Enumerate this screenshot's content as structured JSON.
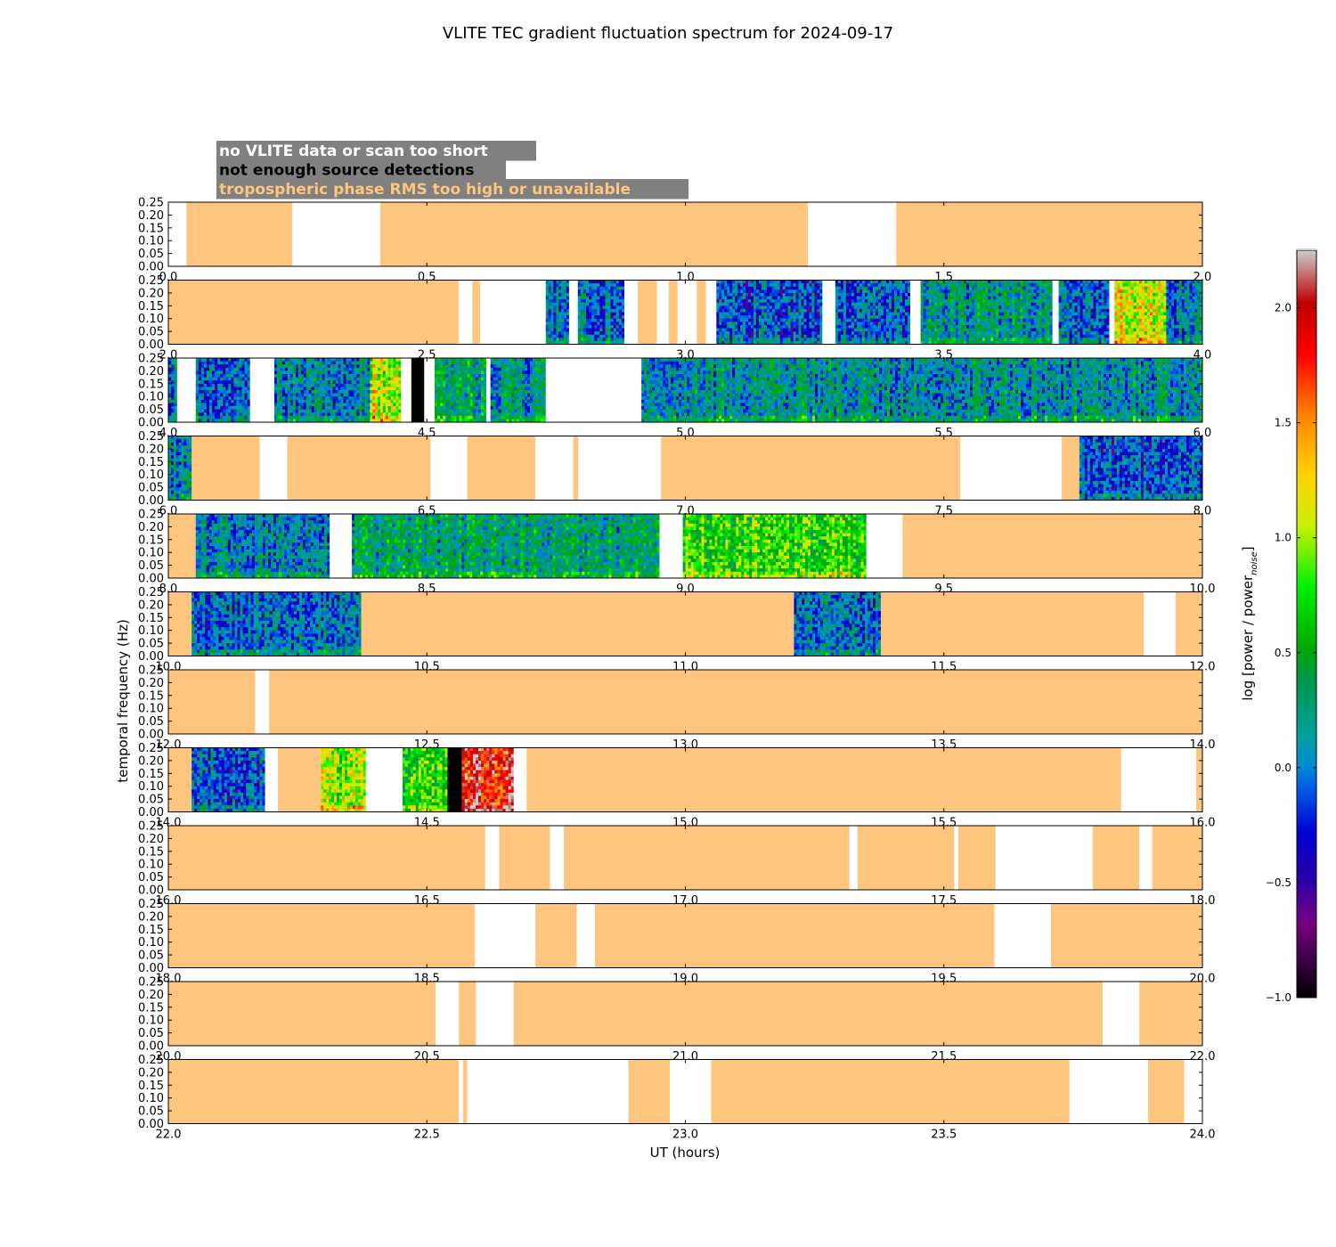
{
  "chart_data": {
    "type": "heatmap",
    "title": "VLITE TEC gradient fluctuation spectrum for 2024-09-17",
    "xlabel": "UT (hours)",
    "ylabel": "temporal frequency (Hz)",
    "ylim": [
      0,
      0.25
    ],
    "y_ticks": [
      "0.00",
      "0.05",
      "0.10",
      "0.15",
      "0.20",
      "0.25"
    ],
    "legend": {
      "placement": "top-left",
      "background": "#808080",
      "entries": [
        {
          "label": "no VLITE data or scan too short",
          "color": "#ffffff"
        },
        {
          "label": "not enough source detections",
          "color": "#000000"
        },
        {
          "label": "tropospheric phase RMS too high or unavailable",
          "color": "#fdc57e"
        }
      ]
    },
    "colorbar": {
      "label": "log [power / power",
      "label_subscript": "noise",
      "label_close": "]",
      "range": [
        -1.0,
        2.25
      ],
      "ticks": [
        "−1.0",
        "−0.5",
        "0.0",
        "0.5",
        "1.0",
        "1.5",
        "2.0"
      ]
    },
    "colors": {
      "trop": "#fdc57e",
      "nodata": "#ffffff",
      "nodet": "#000000"
    },
    "panels": [
      {
        "range": [
          0,
          2
        ],
        "ticks": [
          "0.0",
          "0.5",
          "1.0",
          "1.5",
          "2.0"
        ],
        "segments": [
          [
            0,
            0.035,
            "white"
          ],
          [
            0.035,
            0.24,
            "trop"
          ],
          [
            0.24,
            0.41,
            "white"
          ],
          [
            0.41,
            1.237,
            "trop"
          ],
          [
            1.237,
            1.408,
            "white"
          ],
          [
            1.408,
            2.0,
            "trop"
          ]
        ]
      },
      {
        "range": [
          2,
          4
        ],
        "ticks": [
          "2.0",
          "2.5",
          "3.0",
          "3.5",
          "4.0"
        ],
        "segments": [
          [
            2.0,
            2.562,
            "trop"
          ],
          [
            2.562,
            2.588,
            "white"
          ],
          [
            2.588,
            2.603,
            "trop"
          ],
          [
            2.603,
            2.73,
            "white"
          ],
          [
            2.73,
            2.775,
            "spec",
            0.0
          ],
          [
            2.775,
            2.792,
            "white"
          ],
          [
            2.792,
            2.882,
            "spec",
            0.0
          ],
          [
            2.882,
            2.908,
            "white"
          ],
          [
            2.908,
            2.945,
            "trop"
          ],
          [
            2.945,
            2.968,
            "white"
          ],
          [
            2.968,
            2.985,
            "trop"
          ],
          [
            2.985,
            3.022,
            "white"
          ],
          [
            3.022,
            3.04,
            "trop"
          ],
          [
            3.04,
            3.06,
            "white"
          ],
          [
            3.06,
            3.265,
            "spec",
            -0.1
          ],
          [
            3.265,
            3.29,
            "white"
          ],
          [
            3.29,
            3.435,
            "spec",
            -0.05
          ],
          [
            3.435,
            3.455,
            "white"
          ],
          [
            3.455,
            3.71,
            "spec",
            0.15
          ],
          [
            3.71,
            3.722,
            "white"
          ],
          [
            3.722,
            3.82,
            "spec",
            -0.05
          ],
          [
            3.82,
            3.83,
            "white"
          ],
          [
            3.83,
            3.93,
            "spec",
            1.1
          ],
          [
            3.93,
            4.0,
            "spec",
            0.05
          ]
        ]
      },
      {
        "range": [
          4,
          6
        ],
        "ticks": [
          "4.0",
          "4.5",
          "5.0",
          "5.5",
          "6.0"
        ],
        "segments": [
          [
            4.0,
            4.017,
            "spec",
            0.05
          ],
          [
            4.017,
            4.053,
            "white"
          ],
          [
            4.053,
            4.158,
            "spec",
            -0.05
          ],
          [
            4.158,
            4.205,
            "white"
          ],
          [
            4.205,
            4.39,
            "spec",
            0.1
          ],
          [
            4.39,
            4.45,
            "spec",
            1.1
          ],
          [
            4.45,
            4.47,
            "white"
          ],
          [
            4.47,
            4.495,
            "black"
          ],
          [
            4.495,
            4.515,
            "white"
          ],
          [
            4.515,
            4.615,
            "spec",
            0.3
          ],
          [
            4.615,
            4.623,
            "white"
          ],
          [
            4.623,
            4.73,
            "spec",
            0.15
          ],
          [
            4.73,
            4.915,
            "white"
          ],
          [
            4.915,
            6.0,
            "spec",
            0.15
          ]
        ]
      },
      {
        "range": [
          6,
          8
        ],
        "ticks": [
          "6.0",
          "6.5",
          "7.0",
          "7.5",
          "8.0"
        ],
        "segments": [
          [
            6.0,
            6.045,
            "spec",
            0.05
          ],
          [
            6.045,
            6.177,
            "trop"
          ],
          [
            6.177,
            6.23,
            "white"
          ],
          [
            6.23,
            6.507,
            "trop"
          ],
          [
            6.507,
            6.578,
            "white"
          ],
          [
            6.578,
            6.71,
            "trop"
          ],
          [
            6.71,
            6.783,
            "white"
          ],
          [
            6.783,
            6.793,
            "trop"
          ],
          [
            6.793,
            6.953,
            "white"
          ],
          [
            6.953,
            7.532,
            "trop"
          ],
          [
            7.532,
            7.728,
            "white"
          ],
          [
            7.728,
            7.762,
            "trop"
          ],
          [
            7.762,
            8.0,
            "spec",
            -0.1
          ]
        ]
      },
      {
        "range": [
          8,
          10
        ],
        "ticks": [
          "8.0",
          "8.5",
          "9.0",
          "9.5",
          "10.0"
        ],
        "segments": [
          [
            8.0,
            8.053,
            "trop"
          ],
          [
            8.053,
            8.312,
            "spec",
            0.05
          ],
          [
            8.312,
            8.355,
            "white"
          ],
          [
            8.355,
            8.95,
            "spec",
            0.3
          ],
          [
            8.95,
            8.995,
            "white"
          ],
          [
            8.995,
            9.35,
            "spec",
            0.75
          ],
          [
            9.35,
            9.42,
            "white"
          ],
          [
            9.42,
            10.0,
            "trop"
          ]
        ]
      },
      {
        "range": [
          10,
          12
        ],
        "ticks": [
          "10.0",
          "10.5",
          "11.0",
          "11.5",
          "12.0"
        ],
        "segments": [
          [
            10.0,
            10.045,
            "trop"
          ],
          [
            10.045,
            10.373,
            "spec",
            0.0
          ],
          [
            10.373,
            11.21,
            "trop"
          ],
          [
            11.21,
            11.378,
            "spec",
            0.0
          ],
          [
            11.378,
            11.887,
            "trop"
          ],
          [
            11.887,
            11.948,
            "white"
          ],
          [
            11.948,
            12.0,
            "trop"
          ]
        ]
      },
      {
        "range": [
          12,
          14
        ],
        "ticks": [
          "12.0",
          "12.5",
          "13.0",
          "13.5",
          "14.0"
        ],
        "segments": [
          [
            12.0,
            12.168,
            "trop"
          ],
          [
            12.168,
            12.195,
            "white"
          ],
          [
            12.195,
            14.0,
            "trop"
          ]
        ]
      },
      {
        "range": [
          14,
          16
        ],
        "ticks": [
          "14.0",
          "14.5",
          "15.0",
          "15.5",
          "16.0"
        ],
        "segments": [
          [
            14.0,
            14.045,
            "trop"
          ],
          [
            14.045,
            14.187,
            "spec",
            -0.1
          ],
          [
            14.187,
            14.212,
            "white"
          ],
          [
            14.212,
            14.295,
            "trop"
          ],
          [
            14.295,
            14.382,
            "spec",
            1.0
          ],
          [
            14.382,
            14.453,
            "white"
          ],
          [
            14.453,
            14.54,
            "spec",
            0.7
          ],
          [
            14.54,
            14.568,
            "black"
          ],
          [
            14.568,
            14.668,
            "spec",
            1.9
          ],
          [
            14.668,
            14.693,
            "white"
          ],
          [
            14.693,
            15.843,
            "trop"
          ],
          [
            15.843,
            15.988,
            "white"
          ],
          [
            15.988,
            16.0,
            "trop"
          ]
        ]
      },
      {
        "range": [
          16,
          18
        ],
        "ticks": [
          "16.0",
          "16.5",
          "17.0",
          "17.5",
          "18.0"
        ],
        "segments": [
          [
            16.0,
            16.613,
            "trop"
          ],
          [
            16.613,
            16.64,
            "white"
          ],
          [
            16.64,
            16.738,
            "trop"
          ],
          [
            16.738,
            16.765,
            "white"
          ],
          [
            16.765,
            17.317,
            "trop"
          ],
          [
            17.317,
            17.333,
            "white"
          ],
          [
            17.333,
            17.52,
            "trop"
          ],
          [
            17.52,
            17.528,
            "white"
          ],
          [
            17.528,
            17.6,
            "trop"
          ],
          [
            17.6,
            17.788,
            "white"
          ],
          [
            17.788,
            17.878,
            "trop"
          ],
          [
            17.878,
            17.903,
            "white"
          ],
          [
            17.903,
            18.0,
            "trop"
          ]
        ]
      },
      {
        "range": [
          18,
          20
        ],
        "ticks": [
          "18.0",
          "18.5",
          "19.0",
          "19.5",
          "20.0"
        ],
        "segments": [
          [
            18.0,
            18.593,
            "trop"
          ],
          [
            18.593,
            18.71,
            "white"
          ],
          [
            18.71,
            18.79,
            "trop"
          ],
          [
            18.79,
            18.825,
            "white"
          ],
          [
            18.825,
            19.598,
            "trop"
          ],
          [
            19.598,
            19.707,
            "white"
          ],
          [
            19.707,
            20.0,
            "trop"
          ]
        ]
      },
      {
        "range": [
          20,
          22
        ],
        "ticks": [
          "20.0",
          "20.5",
          "21.0",
          "21.5",
          "22.0"
        ],
        "segments": [
          [
            20.0,
            20.517,
            "trop"
          ],
          [
            20.517,
            20.562,
            "white"
          ],
          [
            20.562,
            20.595,
            "trop"
          ],
          [
            20.595,
            20.668,
            "white"
          ],
          [
            20.668,
            21.807,
            "trop"
          ],
          [
            21.807,
            21.878,
            "white"
          ],
          [
            21.878,
            22.0,
            "trop"
          ]
        ]
      },
      {
        "range": [
          22,
          24
        ],
        "ticks": [
          "22.0",
          "22.5",
          "23.0",
          "23.5",
          "24.0"
        ],
        "segments": [
          [
            22.0,
            22.562,
            "trop"
          ],
          [
            22.562,
            22.57,
            "white"
          ],
          [
            22.57,
            22.578,
            "trop"
          ],
          [
            22.578,
            22.89,
            "white"
          ],
          [
            22.89,
            22.97,
            "trop"
          ],
          [
            22.97,
            23.05,
            "white"
          ],
          [
            23.05,
            23.743,
            "trop"
          ],
          [
            23.743,
            23.895,
            "white"
          ],
          [
            23.895,
            23.965,
            "trop"
          ],
          [
            23.965,
            24.0,
            "white"
          ]
        ]
      }
    ]
  }
}
